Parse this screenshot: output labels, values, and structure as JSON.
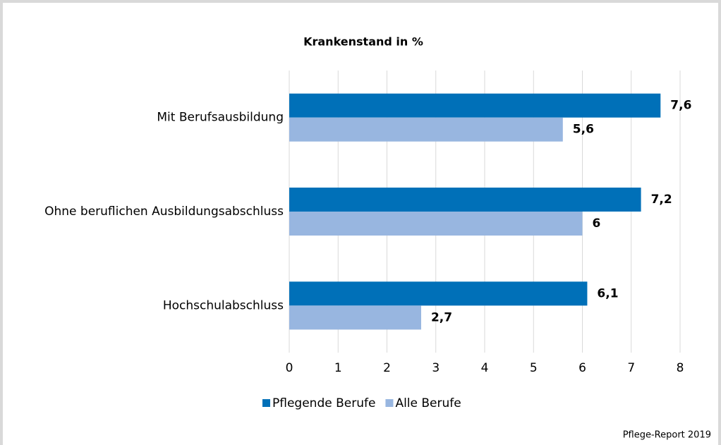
{
  "chart_data": {
    "type": "bar",
    "orientation": "horizontal",
    "title": "Krankenstand in %",
    "categories": [
      "Mit Berufsausbildung",
      "Ohne beruflichen Ausbildungsabschluss",
      "Hochschulabschluss"
    ],
    "series": [
      {
        "name": "Pflegende Berufe",
        "color": "#0070b8",
        "values": [
          7.6,
          7.2,
          6.1
        ],
        "value_labels": [
          "7,6",
          "7,2",
          "6,1"
        ]
      },
      {
        "name": "Alle Berufe",
        "color": "#98b6e0",
        "values": [
          5.6,
          6,
          2.7
        ],
        "value_labels": [
          "5,6",
          "6",
          "2,7"
        ]
      }
    ],
    "xlim": [
      0,
      8
    ],
    "xticks": [
      0,
      1,
      2,
      3,
      4,
      5,
      6,
      7,
      8
    ],
    "grid": true,
    "legend": "bottom",
    "source": "Pflege-Report 2019"
  }
}
